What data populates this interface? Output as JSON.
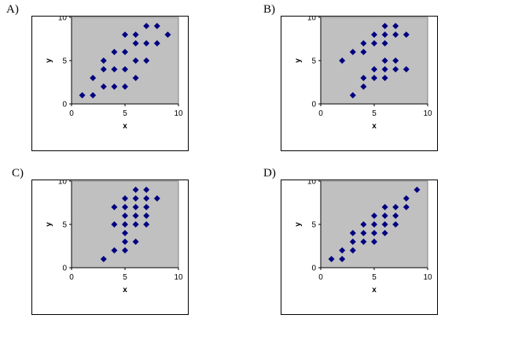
{
  "chart_data": [
    {
      "type": "scatter",
      "option": "A)",
      "xlabel": "x",
      "ylabel": "y",
      "xlim": [
        0,
        10
      ],
      "ylim": [
        0,
        10
      ],
      "xticks": [
        0,
        5,
        10
      ],
      "yticks": [
        0,
        5,
        10
      ],
      "marker_color": "#000080",
      "plot_bg": "#c0c0c0",
      "points": [
        [
          1,
          1
        ],
        [
          2,
          1
        ],
        [
          2,
          3
        ],
        [
          3,
          2
        ],
        [
          3,
          4
        ],
        [
          3,
          5
        ],
        [
          4,
          2
        ],
        [
          4,
          4
        ],
        [
          4,
          6
        ],
        [
          5,
          2
        ],
        [
          5,
          4
        ],
        [
          5,
          6
        ],
        [
          5,
          8
        ],
        [
          6,
          3
        ],
        [
          6,
          5
        ],
        [
          6,
          7
        ],
        [
          6,
          8
        ],
        [
          7,
          5
        ],
        [
          7,
          7
        ],
        [
          7,
          9
        ],
        [
          8,
          7
        ],
        [
          8,
          9
        ],
        [
          9,
          8
        ]
      ]
    },
    {
      "type": "scatter",
      "option": "B)",
      "xlabel": "x",
      "ylabel": "y",
      "xlim": [
        0,
        10
      ],
      "ylim": [
        0,
        10
      ],
      "xticks": [
        0,
        5,
        10
      ],
      "yticks": [
        0,
        5,
        10
      ],
      "marker_color": "#000080",
      "plot_bg": "#c0c0c0",
      "points": [
        [
          2,
          5
        ],
        [
          3,
          1
        ],
        [
          3,
          6
        ],
        [
          4,
          2
        ],
        [
          4,
          3
        ],
        [
          4,
          6
        ],
        [
          4,
          7
        ],
        [
          5,
          3
        ],
        [
          5,
          4
        ],
        [
          5,
          7
        ],
        [
          5,
          8
        ],
        [
          6,
          3
        ],
        [
          6,
          4
        ],
        [
          6,
          5
        ],
        [
          6,
          7
        ],
        [
          6,
          8
        ],
        [
          6,
          9
        ],
        [
          7,
          4
        ],
        [
          7,
          5
        ],
        [
          7,
          8
        ],
        [
          7,
          9
        ],
        [
          8,
          4
        ],
        [
          8,
          8
        ]
      ]
    },
    {
      "type": "scatter",
      "option": "C)",
      "xlabel": "x",
      "ylabel": "y",
      "xlim": [
        0,
        10
      ],
      "ylim": [
        0,
        10
      ],
      "xticks": [
        0,
        5,
        10
      ],
      "yticks": [
        0,
        5,
        10
      ],
      "marker_color": "#000080",
      "plot_bg": "#c0c0c0",
      "points": [
        [
          3,
          1
        ],
        [
          4,
          2
        ],
        [
          4,
          5
        ],
        [
          4,
          7
        ],
        [
          5,
          2
        ],
        [
          5,
          3
        ],
        [
          5,
          4
        ],
        [
          5,
          5
        ],
        [
          5,
          6
        ],
        [
          5,
          7
        ],
        [
          5,
          8
        ],
        [
          6,
          3
        ],
        [
          6,
          5
        ],
        [
          6,
          6
        ],
        [
          6,
          7
        ],
        [
          6,
          8
        ],
        [
          6,
          9
        ],
        [
          7,
          5
        ],
        [
          7,
          6
        ],
        [
          7,
          7
        ],
        [
          7,
          8
        ],
        [
          7,
          9
        ],
        [
          8,
          8
        ]
      ]
    },
    {
      "type": "scatter",
      "option": "D)",
      "xlabel": "x",
      "ylabel": "y",
      "xlim": [
        0,
        10
      ],
      "ylim": [
        0,
        10
      ],
      "xticks": [
        0,
        5,
        10
      ],
      "yticks": [
        0,
        5,
        10
      ],
      "marker_color": "#000080",
      "plot_bg": "#c0c0c0",
      "points": [
        [
          1,
          1
        ],
        [
          2,
          1
        ],
        [
          2,
          2
        ],
        [
          3,
          2
        ],
        [
          3,
          3
        ],
        [
          3,
          4
        ],
        [
          4,
          3
        ],
        [
          4,
          4
        ],
        [
          4,
          5
        ],
        [
          5,
          3
        ],
        [
          5,
          4
        ],
        [
          5,
          5
        ],
        [
          5,
          6
        ],
        [
          6,
          4
        ],
        [
          6,
          5
        ],
        [
          6,
          6
        ],
        [
          6,
          7
        ],
        [
          7,
          5
        ],
        [
          7,
          6
        ],
        [
          7,
          7
        ],
        [
          8,
          7
        ],
        [
          8,
          8
        ],
        [
          9,
          9
        ]
      ]
    }
  ]
}
